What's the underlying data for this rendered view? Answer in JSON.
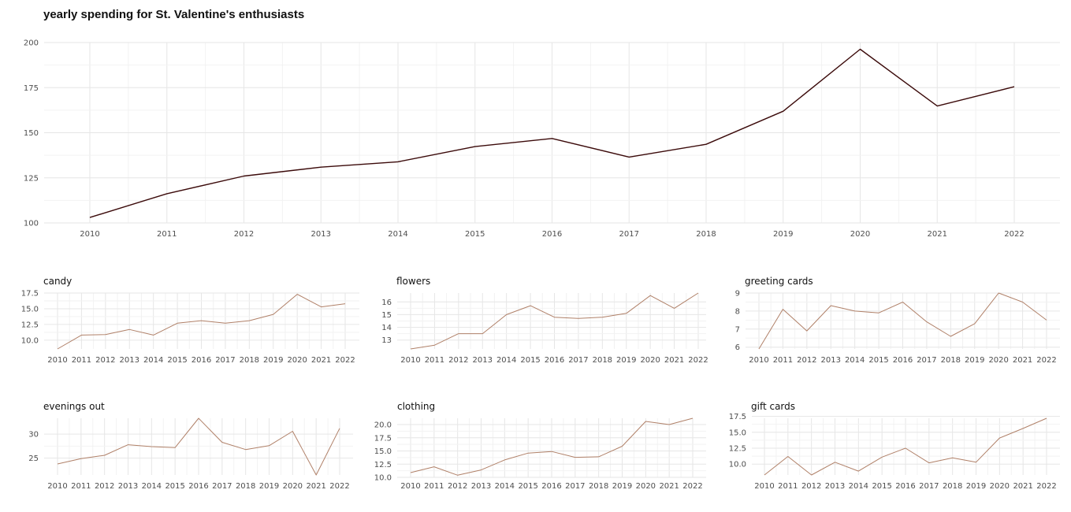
{
  "title": "yearly spending for St. Valentine's enthusiasts",
  "colors": {
    "main_line": "#3b0a0a",
    "small_line": "#b08068"
  },
  "chart_data": [
    {
      "type": "line",
      "title": "",
      "x": [
        2010,
        2011,
        2012,
        2013,
        2014,
        2015,
        2016,
        2017,
        2018,
        2019,
        2020,
        2021,
        2022
      ],
      "y": [
        103,
        116.2,
        126,
        130.9,
        133.9,
        142.3,
        146.8,
        136.5,
        143.6,
        161.9,
        196.3,
        164.8,
        175.5
      ],
      "yticks": [
        100,
        125,
        150,
        175,
        200
      ],
      "ylim": [
        100,
        200
      ]
    },
    {
      "type": "line",
      "title": "candy",
      "x": [
        2010,
        2011,
        2012,
        2013,
        2014,
        2015,
        2016,
        2017,
        2018,
        2019,
        2020,
        2021,
        2022
      ],
      "y": [
        8.6,
        10.8,
        10.9,
        11.7,
        10.8,
        12.7,
        13.1,
        12.7,
        13.1,
        14.1,
        17.3,
        15.3,
        15.8
      ],
      "yticks": [
        "10.0",
        "12.5",
        "15.0",
        "17.5"
      ],
      "ylim": [
        8.6,
        17.5
      ]
    },
    {
      "type": "line",
      "title": "flowers",
      "x": [
        2010,
        2011,
        2012,
        2013,
        2014,
        2015,
        2016,
        2017,
        2018,
        2019,
        2020,
        2021,
        2022
      ],
      "y": [
        12.3,
        12.6,
        13.5,
        13.5,
        15,
        15.7,
        14.8,
        14.7,
        14.8,
        15.1,
        16.5,
        15.5,
        16.7
      ],
      "yticks": [
        "13",
        "14",
        "15",
        "16"
      ],
      "ylim": [
        12.3,
        16.7
      ]
    },
    {
      "type": "line",
      "title": "greeting cards",
      "x": [
        2010,
        2011,
        2012,
        2013,
        2014,
        2015,
        2016,
        2017,
        2018,
        2019,
        2020,
        2021,
        2022
      ],
      "y": [
        5.9,
        8.1,
        6.9,
        8.3,
        8,
        7.9,
        8.5,
        7.4,
        6.6,
        7.3,
        9,
        8.5,
        7.5
      ],
      "yticks": [
        "6",
        "7",
        "8",
        "9"
      ],
      "ylim": [
        5.9,
        9
      ]
    },
    {
      "type": "line",
      "title": "evenings out",
      "x": [
        2010,
        2011,
        2012,
        2013,
        2014,
        2015,
        2016,
        2017,
        2018,
        2019,
        2020,
        2021,
        2022
      ],
      "y": [
        23.8,
        24.9,
        25.6,
        27.8,
        27.4,
        27.2,
        33.3,
        28.3,
        26.8,
        27.6,
        30.6,
        21.5,
        31.2
      ],
      "yticks": [
        "25",
        "30"
      ],
      "ylim": [
        21.5,
        33.3
      ]
    },
    {
      "type": "line",
      "title": "clothing",
      "x": [
        2010,
        2011,
        2012,
        2013,
        2014,
        2015,
        2016,
        2017,
        2018,
        2019,
        2020,
        2021,
        2022
      ],
      "y": [
        10.9,
        12,
        10.4,
        11.4,
        13.3,
        14.6,
        14.9,
        13.8,
        13.9,
        15.9,
        20.6,
        20,
        21.2
      ],
      "yticks": [
        "10.0",
        "12.5",
        "15.0",
        "17.5",
        "20.0"
      ],
      "ylim": [
        10,
        21.2
      ]
    },
    {
      "type": "line",
      "title": "gift cards",
      "x": [
        2010,
        2011,
        2012,
        2013,
        2014,
        2015,
        2016,
        2017,
        2018,
        2019,
        2020,
        2021,
        2022
      ],
      "y": [
        8.3,
        11.2,
        8.3,
        10.3,
        8.9,
        11.1,
        12.5,
        10.2,
        11,
        10.3,
        14.1,
        15.6,
        17.2
      ],
      "yticks": [
        "10.0",
        "12.5",
        "15.0",
        "17.5"
      ],
      "ylim": [
        8.3,
        17.2
      ]
    }
  ]
}
